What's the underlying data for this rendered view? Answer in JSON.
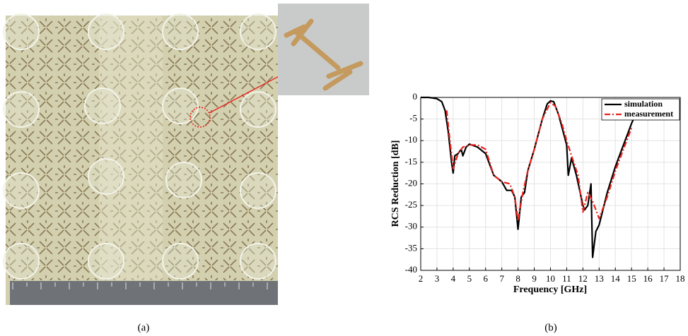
{
  "figure": {
    "panel_labels": [
      "(a)",
      "(b)"
    ]
  },
  "chart_data": {
    "type": "line",
    "x_label": "Frequency [GHz]",
    "y_label": "RCS Reduction [dB]",
    "xlim": [
      2,
      18
    ],
    "xticks": [
      2,
      3,
      4,
      5,
      6,
      7,
      8,
      9,
      10,
      11,
      12,
      13,
      14,
      15,
      16,
      17,
      18
    ],
    "ylim": [
      -40,
      0
    ],
    "yticks": [
      -40,
      -35,
      -30,
      -25,
      -20,
      -15,
      -10,
      -5,
      0
    ],
    "grid": true,
    "legend": "upper right",
    "series": [
      {
        "name": "simulation",
        "color": "#000000",
        "dash": "solid",
        "x": [
          2,
          2.5,
          3,
          3.3,
          3.5,
          3.7,
          3.9,
          4.0,
          4.1,
          4.3,
          4.5,
          4.6,
          4.8,
          5,
          5.5,
          6,
          6.5,
          7,
          7.3,
          7.6,
          7.8,
          8.0,
          8.2,
          8.4,
          8.6,
          9,
          9.5,
          9.8,
          10,
          10.2,
          10.5,
          11,
          11.1,
          11.3,
          11.6,
          12,
          12.1,
          12.3,
          12.5,
          12.6,
          12.8,
          13,
          13.5,
          14,
          14.5,
          15,
          15.3
        ],
        "values": [
          0,
          0,
          -0.3,
          -1,
          -3,
          -8,
          -15,
          -17.5,
          -13.5,
          -13,
          -12,
          -13.5,
          -11.5,
          -10.8,
          -11.5,
          -13,
          -18,
          -19.5,
          -21.5,
          -21.5,
          -23,
          -30.5,
          -23,
          -22,
          -17,
          -12,
          -5,
          -1.5,
          -0.8,
          -1,
          -4,
          -11,
          -18,
          -14,
          -18,
          -25,
          -26,
          -25,
          -20,
          -37,
          -31,
          -29.5,
          -22,
          -16,
          -11,
          -6,
          -3.5
        ]
      },
      {
        "name": "measurement",
        "color": "#e8231c",
        "dash": "dashdot",
        "x": [
          3.6,
          3.8,
          4.0,
          4.3,
          4.6,
          5,
          5.5,
          6,
          6.5,
          7,
          7.5,
          7.8,
          8.0,
          8.3,
          8.6,
          9,
          9.5,
          10,
          10.3,
          10.7,
          11,
          11.3,
          11.7,
          12,
          12.3,
          12.6,
          13,
          13.5,
          14,
          14.5,
          15
        ],
        "values": [
          -3,
          -10,
          -16.5,
          -13,
          -11.5,
          -11,
          -11,
          -12,
          -18,
          -19.5,
          -20,
          -23,
          -28.5,
          -22,
          -17,
          -12,
          -5,
          -1.2,
          -2,
          -6,
          -10,
          -13.5,
          -18,
          -26.5,
          -22,
          -24,
          -28,
          -23,
          -17,
          -12,
          -7
        ]
      }
    ]
  }
}
